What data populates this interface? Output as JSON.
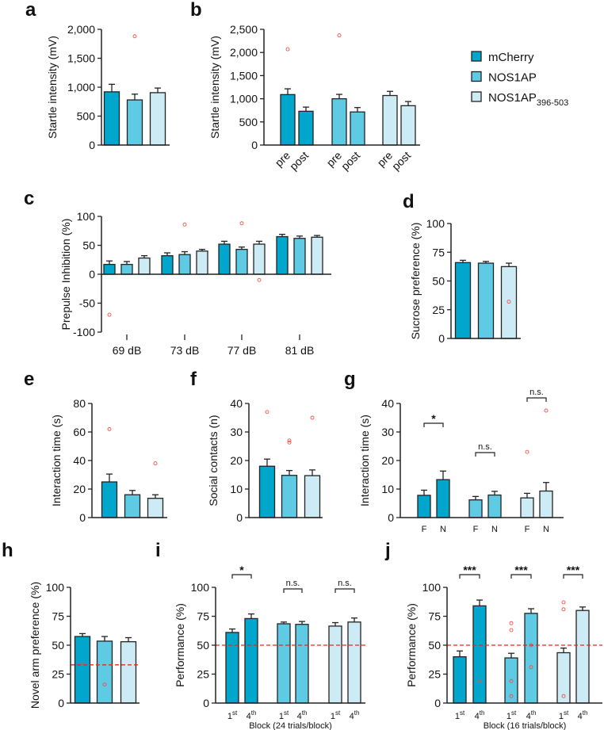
{
  "legend": {
    "items": [
      {
        "label": "mCherry",
        "color": "#00a6cb"
      },
      {
        "label": "NOS1AP",
        "color": "#5ecae3"
      },
      {
        "label": "NOS1AP",
        "sub": "396-503",
        "color": "#cdebf4"
      }
    ]
  },
  "colors": {
    "outlier": "#f0504a",
    "refline": "#e8281e",
    "axis": "#222222"
  },
  "chart_data": [
    {
      "panel": "a",
      "type": "bar",
      "ylabel": "Startle intensity (mV)",
      "ylim": [
        0,
        2000
      ],
      "yticks": [
        0,
        500,
        1000,
        1500,
        2000
      ],
      "yticklabels": [
        "0",
        "500",
        "1,000",
        "1,500",
        "2,000"
      ],
      "bars": [
        {
          "group": 0,
          "value": 920,
          "err": 130
        },
        {
          "group": 1,
          "value": 780,
          "err": 100
        },
        {
          "group": 2,
          "value": 905,
          "err": 80
        }
      ],
      "outliers": [
        {
          "bar": 1,
          "y": 1880
        }
      ]
    },
    {
      "panel": "b",
      "type": "bar",
      "ylabel": "Startle intensity (mV)",
      "ylim": [
        0,
        2500
      ],
      "yticks": [
        0,
        500,
        1000,
        1500,
        2000,
        2500
      ],
      "yticklabels": [
        "0",
        "500",
        "1,000",
        "1,500",
        "2,000",
        "2,500"
      ],
      "xticklabels": [
        "pre",
        "post",
        "pre",
        "post",
        "pre",
        "post"
      ],
      "bars": [
        {
          "group": 0,
          "value": 1090,
          "err": 125
        },
        {
          "group": 0,
          "value": 730,
          "err": 90
        },
        {
          "group": 1,
          "value": 1000,
          "err": 95
        },
        {
          "group": 1,
          "value": 715,
          "err": 95
        },
        {
          "group": 2,
          "value": 1070,
          "err": 90
        },
        {
          "group": 2,
          "value": 850,
          "err": 90
        }
      ],
      "outliers": [
        {
          "bar": 0,
          "y": 2070
        },
        {
          "bar": 2,
          "y": 2370
        }
      ]
    },
    {
      "panel": "c",
      "type": "bar",
      "ylabel": "Prepulse Inhibition (%)",
      "ylim": [
        -100,
        100
      ],
      "yticks": [
        -100,
        -50,
        0,
        50,
        100
      ],
      "yticklabels": [
        "-100",
        "-50",
        "0",
        "50",
        "100"
      ],
      "categories": [
        "69 dB",
        "73 dB",
        "77 dB",
        "81 dB"
      ],
      "bars": [
        {
          "group": 0,
          "value": 17,
          "err": 6
        },
        {
          "group": 1,
          "value": 17,
          "err": 5
        },
        {
          "group": 2,
          "value": 28,
          "err": 4
        },
        {
          "group": 0,
          "value": 32,
          "err": 5
        },
        {
          "group": 1,
          "value": 34,
          "err": 5
        },
        {
          "group": 2,
          "value": 40,
          "err": 3
        },
        {
          "group": 0,
          "value": 52,
          "err": 5
        },
        {
          "group": 1,
          "value": 43,
          "err": 4
        },
        {
          "group": 2,
          "value": 52,
          "err": 5
        },
        {
          "group": 0,
          "value": 65,
          "err": 4
        },
        {
          "group": 1,
          "value": 62,
          "err": 4
        },
        {
          "group": 2,
          "value": 64,
          "err": 3
        }
      ],
      "outliers": [
        {
          "bar": 0,
          "y": -70
        },
        {
          "bar": 4,
          "y": 86
        },
        {
          "bar": 7,
          "y": 88
        },
        {
          "bar": 8,
          "y": -10
        }
      ]
    },
    {
      "panel": "d",
      "type": "bar",
      "ylabel": "Sucrose preference (%)",
      "ylim": [
        0,
        100
      ],
      "yticks": [
        0,
        25,
        50,
        75,
        100
      ],
      "yticklabels": [
        "0",
        "25",
        "50",
        "75",
        "100"
      ],
      "bars": [
        {
          "group": 0,
          "value": 66,
          "err": 2
        },
        {
          "group": 1,
          "value": 65.5,
          "err": 1.5
        },
        {
          "group": 2,
          "value": 62.5,
          "err": 3
        }
      ],
      "outliers": [
        {
          "bar": 2,
          "y": 32
        }
      ]
    },
    {
      "panel": "e",
      "type": "bar",
      "ylabel": "Interaction time (s)",
      "ylim": [
        0,
        80
      ],
      "yticks": [
        0,
        20,
        40,
        60,
        80
      ],
      "yticklabels": [
        "0",
        "20",
        "40",
        "60",
        "80"
      ],
      "bars": [
        {
          "group": 0,
          "value": 25,
          "err": 5.5
        },
        {
          "group": 1,
          "value": 16,
          "err": 3
        },
        {
          "group": 2,
          "value": 13.5,
          "err": 2.5
        }
      ],
      "outliers": [
        {
          "bar": 0,
          "y": 62
        },
        {
          "bar": 2,
          "y": 38
        }
      ]
    },
    {
      "panel": "f",
      "type": "bar",
      "ylabel": "Social contacts (n)",
      "ylim": [
        0,
        40
      ],
      "yticks": [
        0,
        10,
        20,
        30,
        40
      ],
      "yticklabels": [
        "0",
        "10",
        "20",
        "30",
        "40"
      ],
      "bars": [
        {
          "group": 0,
          "value": 18,
          "err": 2.5
        },
        {
          "group": 1,
          "value": 14.8,
          "err": 1.7
        },
        {
          "group": 2,
          "value": 14.7,
          "err": 2
        }
      ],
      "outliers": [
        {
          "bar": 0,
          "y": 37
        },
        {
          "bar": 1,
          "y": 27
        },
        {
          "bar": 1,
          "y": 26.3
        },
        {
          "bar": 2,
          "y": 35
        }
      ]
    },
    {
      "panel": "g",
      "type": "bar",
      "ylabel": "Interaction time (s)",
      "ylim": [
        0,
        40
      ],
      "yticks": [
        0,
        10,
        20,
        30,
        40
      ],
      "yticklabels": [
        "0",
        "10",
        "20",
        "30",
        "40"
      ],
      "xticklabels": [
        "F",
        "N",
        "F",
        "N",
        "F",
        "N"
      ],
      "bars": [
        {
          "group": 0,
          "value": 7.8,
          "err": 1.8
        },
        {
          "group": 0,
          "value": 13.3,
          "err": 3
        },
        {
          "group": 1,
          "value": 6.2,
          "err": 1.2
        },
        {
          "group": 1,
          "value": 7.9,
          "err": 1.3
        },
        {
          "group": 2,
          "value": 6.9,
          "err": 1.6
        },
        {
          "group": 2,
          "value": 9.3,
          "err": 3
        }
      ],
      "outliers": [
        {
          "bar": 4,
          "y": 23
        },
        {
          "bar": 5,
          "y": 37.5
        }
      ],
      "annotations": [
        {
          "text": "*",
          "pair": [
            0,
            1
          ]
        },
        {
          "text": "n.s.",
          "pair": [
            2,
            3
          ]
        },
        {
          "text": "n.s.",
          "pair": [
            4,
            5
          ]
        }
      ]
    },
    {
      "panel": "h",
      "type": "bar",
      "ylabel": "Novel arm preference (%)",
      "ylim": [
        0,
        100
      ],
      "yticks": [
        0,
        25,
        50,
        75,
        100
      ],
      "yticklabels": [
        "0",
        "25",
        "50",
        "75",
        "100"
      ],
      "refline": 33,
      "bars": [
        {
          "group": 0,
          "value": 57.5,
          "err": 2.5
        },
        {
          "group": 1,
          "value": 53.5,
          "err": 4
        },
        {
          "group": 2,
          "value": 53,
          "err": 3.5
        }
      ],
      "outliers": [
        {
          "bar": 0,
          "y": 34
        },
        {
          "bar": 1,
          "y": 16
        }
      ]
    },
    {
      "panel": "i",
      "type": "bar",
      "ylabel": "Performance (%)",
      "ylim": [
        0,
        100
      ],
      "yticks": [
        0,
        25,
        50,
        75,
        100
      ],
      "yticklabels": [
        "0",
        "25",
        "50",
        "75",
        "100"
      ],
      "refline": 50,
      "xlabel": "Block (24 trials/block)",
      "xticklabels": [
        {
          "n": "1",
          "sup": "st"
        },
        {
          "n": "4",
          "sup": "th"
        },
        {
          "n": "1",
          "sup": "st"
        },
        {
          "n": "4",
          "sup": "th"
        },
        {
          "n": "1",
          "sup": "st"
        },
        {
          "n": "4",
          "sup": "th"
        }
      ],
      "bars": [
        {
          "group": 0,
          "value": 61,
          "err": 3
        },
        {
          "group": 0,
          "value": 73,
          "err": 4
        },
        {
          "group": 1,
          "value": 68.5,
          "err": 1.5
        },
        {
          "group": 1,
          "value": 68,
          "err": 2.5
        },
        {
          "group": 2,
          "value": 66.5,
          "err": 3
        },
        {
          "group": 2,
          "value": 70,
          "err": 3.5
        }
      ],
      "outliers": [],
      "annotations": [
        {
          "text": "*",
          "pair": [
            0,
            1
          ]
        },
        {
          "text": "n.s.",
          "pair": [
            2,
            3
          ]
        },
        {
          "text": "n.s.",
          "pair": [
            4,
            5
          ]
        }
      ]
    },
    {
      "panel": "j",
      "type": "bar",
      "ylabel": "Performance (%)",
      "ylim": [
        0,
        100
      ],
      "yticks": [
        0,
        25,
        50,
        75,
        100
      ],
      "yticklabels": [
        "0",
        "25",
        "50",
        "75",
        "100"
      ],
      "refline": 50,
      "xlabel": "Block (16 trials/block)",
      "xticklabels": [
        {
          "n": "1",
          "sup": "st"
        },
        {
          "n": "4",
          "sup": "th"
        },
        {
          "n": "1",
          "sup": "st"
        },
        {
          "n": "4",
          "sup": "th"
        },
        {
          "n": "1",
          "sup": "st"
        },
        {
          "n": "4",
          "sup": "th"
        }
      ],
      "bars": [
        {
          "group": 0,
          "value": 40,
          "err": 5
        },
        {
          "group": 0,
          "value": 84,
          "err": 5
        },
        {
          "group": 1,
          "value": 39,
          "err": 4
        },
        {
          "group": 1,
          "value": 77.5,
          "err": 4
        },
        {
          "group": 2,
          "value": 43.5,
          "err": 4
        },
        {
          "group": 2,
          "value": 80,
          "err": 3
        }
      ],
      "outliers": [
        {
          "bar": 1,
          "y": 19
        },
        {
          "bar": 2,
          "y": 69
        },
        {
          "bar": 2,
          "y": 63
        },
        {
          "bar": 2,
          "y": 19
        },
        {
          "bar": 2,
          "y": 6
        },
        {
          "bar": 3,
          "y": 50
        },
        {
          "bar": 3,
          "y": 31
        },
        {
          "bar": 4,
          "y": 87
        },
        {
          "bar": 4,
          "y": 81
        },
        {
          "bar": 4,
          "y": 6
        }
      ],
      "annotations": [
        {
          "text": "***",
          "pair": [
            0,
            1
          ]
        },
        {
          "text": "***",
          "pair": [
            2,
            3
          ]
        },
        {
          "text": "***",
          "pair": [
            4,
            5
          ]
        }
      ]
    }
  ]
}
